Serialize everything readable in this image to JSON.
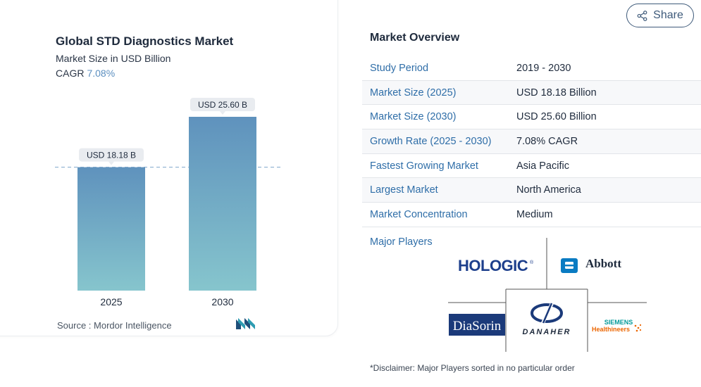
{
  "chart_data": {
    "type": "bar",
    "title": "Global STD Diagnostics Market",
    "subtitle": "Market Size in USD Billion",
    "cagr_label": "CAGR",
    "cagr_value": "7.08%",
    "categories": [
      "2025",
      "2030"
    ],
    "values": [
      18.18,
      25.6
    ],
    "data_labels": [
      "USD 18.18 B",
      "USD 25.60 B"
    ],
    "xlabel": "",
    "ylabel": "",
    "ylim": [
      0,
      25.6
    ],
    "grid": false,
    "legend": "none",
    "reference_line_value": 18.18,
    "bar_color_top": "#5f92bd",
    "bar_color_bottom": "#86c5cd"
  },
  "source": {
    "label": "Source :",
    "name": "Mordor Intelligence"
  },
  "share": {
    "label": "Share"
  },
  "overview": {
    "title": "Market Overview",
    "rows": [
      {
        "label": "Study Period",
        "value": "2019 - 2030"
      },
      {
        "label": "Market Size (2025)",
        "value": "USD 18.18 Billion"
      },
      {
        "label": "Market Size (2030)",
        "value": "USD 25.60 Billion"
      },
      {
        "label": "Growth Rate (2025 - 2030)",
        "value": "7.08% CAGR"
      },
      {
        "label": "Fastest Growing Market",
        "value": "Asia Pacific"
      },
      {
        "label": "Largest Market",
        "value": "North America"
      },
      {
        "label": "Market Concentration",
        "value": "Medium"
      }
    ]
  },
  "players": {
    "label": "Major Players",
    "logos": {
      "hologic": "HOLOGIC",
      "abbott": "Abbott",
      "diasorin": "DiaSorin",
      "danaher": "DANAHER",
      "siemens_top": "SIEMENS",
      "siemens_bottom": "Healthineers"
    }
  },
  "disclaimer": "*Disclaimer: Major Players sorted in no particular order",
  "colors": {
    "accent_blue": "#2f6ea8",
    "cagr_blue": "#5c8fc0",
    "hologic_blue": "#1d3f8c",
    "diasorin_blue": "#1b3a7a",
    "siemens_orange": "#ec6602",
    "siemens_teal": "#009999"
  }
}
